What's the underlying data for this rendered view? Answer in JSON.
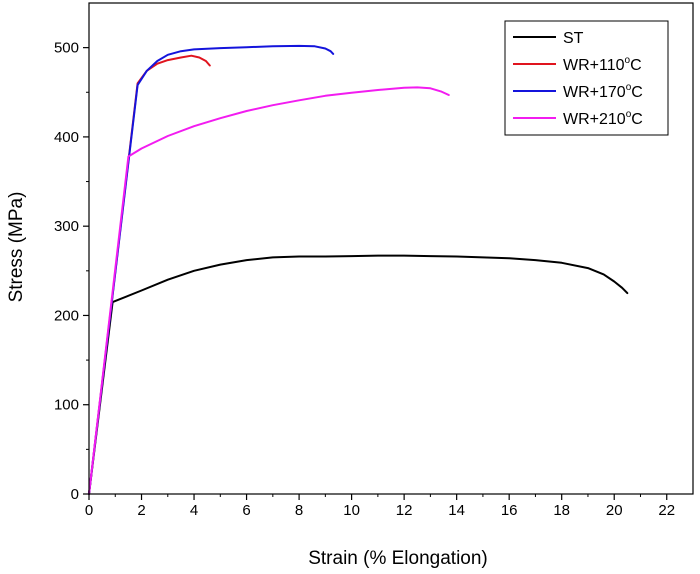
{
  "chart_data": {
    "type": "line",
    "title": "",
    "xlabel": "Strain (% Elongation)",
    "ylabel": "Stress (MPa)",
    "xlim": [
      0,
      23
    ],
    "ylim": [
      0,
      550
    ],
    "xticks": [
      0,
      2,
      4,
      6,
      8,
      10,
      12,
      14,
      16,
      18,
      20,
      22
    ],
    "yticks": [
      0,
      100,
      200,
      300,
      400,
      500
    ],
    "grid": false,
    "legend_position": "top-right",
    "series": [
      {
        "name": "ST",
        "name_parts": [
          "ST",
          "",
          ""
        ],
        "color": "#000000",
        "x": [
          0,
          0.9,
          2,
          3,
          4,
          5,
          6,
          7,
          8,
          9,
          10,
          11,
          12,
          13,
          14,
          15,
          16,
          17,
          18,
          19,
          19.6,
          20,
          20.3,
          20.5
        ],
        "y": [
          0,
          215,
          228,
          240,
          250,
          257,
          262,
          265,
          266,
          266,
          266.5,
          267,
          267,
          266.5,
          266,
          265,
          264,
          262,
          259,
          253,
          246,
          238,
          231,
          225
        ]
      },
      {
        "name": "WR+110°C",
        "name_parts": [
          "WR+110",
          "o",
          "C"
        ],
        "color": "#e0141e",
        "x": [
          0,
          1.85,
          2.2,
          2.6,
          3,
          3.5,
          3.9,
          4.2,
          4.45,
          4.6
        ],
        "y": [
          0,
          460,
          474,
          482,
          486,
          489,
          491,
          489,
          485,
          480
        ],
        "lw": 2
      },
      {
        "name": "WR+170°C",
        "name_parts": [
          "WR+170",
          "o",
          "C"
        ],
        "color": "#1414dc",
        "x": [
          0,
          1.85,
          2.2,
          2.6,
          3,
          3.5,
          4,
          5,
          6,
          7,
          8,
          8.6,
          9,
          9.2,
          9.3
        ],
        "y": [
          0,
          458,
          474,
          485,
          492,
          496,
          498,
          499.5,
          500.5,
          501.5,
          502,
          501.5,
          499,
          496,
          493
        ],
        "lw": 2
      },
      {
        "name": "WR+210°C",
        "name_parts": [
          "WR+210",
          "o",
          "C"
        ],
        "color": "#f21cf0",
        "x": [
          0,
          1.5,
          2,
          3,
          4,
          5,
          6,
          7,
          8,
          9,
          10,
          11,
          12,
          12.5,
          13,
          13.4,
          13.7
        ],
        "y": [
          0,
          378,
          387,
          401,
          412,
          421,
          429,
          435.5,
          441,
          446,
          449.5,
          452.5,
          455,
          455.5,
          454.5,
          451,
          447
        ],
        "lw": 2
      }
    ]
  }
}
